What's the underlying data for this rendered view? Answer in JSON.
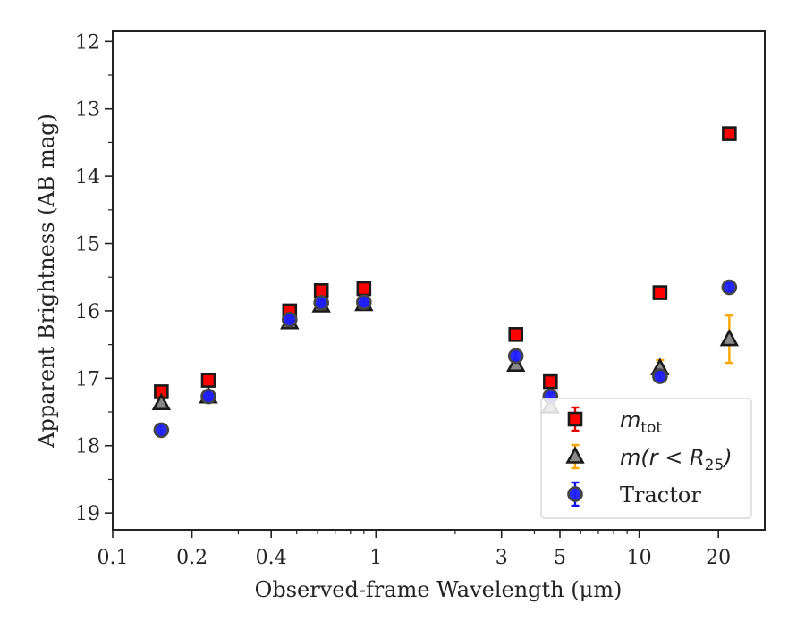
{
  "chart_data": {
    "type": "scatter",
    "xlabel": "Observed-frame Wavelength (μm)",
    "ylabel": "Apparent Brightness (AB mag)",
    "xscale": "log",
    "xlim": [
      0.1,
      30
    ],
    "ylim": [
      19.25,
      11.85
    ],
    "y_inverted": true,
    "x_ticks": [
      {
        "value": 0.1,
        "label": "0.1"
      },
      {
        "value": 0.2,
        "label": "0.2"
      },
      {
        "value": 0.4,
        "label": "0.4"
      },
      {
        "value": 1,
        "label": "1"
      },
      {
        "value": 3,
        "label": "3"
      },
      {
        "value": 5,
        "label": "5"
      },
      {
        "value": 10,
        "label": "10"
      },
      {
        "value": 20,
        "label": "20"
      }
    ],
    "y_ticks": [
      12,
      13,
      14,
      15,
      16,
      17,
      18,
      19
    ],
    "grid": false,
    "legend_position": "lower-right",
    "series": [
      {
        "name": "m_tot",
        "legend_base": "m",
        "legend_sub": "tot",
        "legend_sub_after": "",
        "marker": "square",
        "color": "#ff0000",
        "edge": "#1a1a1a",
        "errcolor": "#e00000",
        "points": [
          {
            "x": 0.153,
            "y": 17.2,
            "err": 0.04
          },
          {
            "x": 0.231,
            "y": 17.03,
            "err": 0.04
          },
          {
            "x": 0.47,
            "y": 16.0,
            "err": 0.03
          },
          {
            "x": 0.62,
            "y": 15.7,
            "err": 0.03
          },
          {
            "x": 0.9,
            "y": 15.67,
            "err": 0.03
          },
          {
            "x": 3.4,
            "y": 16.35,
            "err": 0.04
          },
          {
            "x": 4.6,
            "y": 17.05,
            "err": 0.05
          },
          {
            "x": 12.0,
            "y": 15.73,
            "err": 0.05
          },
          {
            "x": 22.0,
            "y": 13.37,
            "err": 0.05
          }
        ]
      },
      {
        "name": "m(r<R25)",
        "legend_base": "m(r < R",
        "legend_sub": "25",
        "legend_sub_after": ")",
        "marker": "triangle",
        "color": "#888888",
        "edge": "#1a1a1a",
        "errcolor": "#ffa500",
        "points": [
          {
            "x": 0.153,
            "y": 17.37,
            "err": 0.05
          },
          {
            "x": 0.231,
            "y": 17.27,
            "err": 0.04
          },
          {
            "x": 0.47,
            "y": 16.17,
            "err": 0.03
          },
          {
            "x": 0.62,
            "y": 15.92,
            "err": 0.03
          },
          {
            "x": 0.9,
            "y": 15.9,
            "err": 0.03
          },
          {
            "x": 3.4,
            "y": 16.8,
            "err": 0.05
          },
          {
            "x": 4.6,
            "y": 17.42,
            "err": 0.07
          },
          {
            "x": 12.0,
            "y": 16.85,
            "err": 0.12
          },
          {
            "x": 22.0,
            "y": 16.42,
            "err": 0.35
          }
        ]
      },
      {
        "name": "Tractor",
        "legend_base": "Tractor",
        "legend_sub": "",
        "legend_sub_after": "",
        "marker": "circle",
        "color": "#1f1fff",
        "edge": "#444444",
        "errcolor": "#1010ff",
        "points": [
          {
            "x": 0.153,
            "y": 17.77,
            "err": 0.08
          },
          {
            "x": 0.231,
            "y": 17.27,
            "err": 0.04
          },
          {
            "x": 0.47,
            "y": 16.13,
            "err": 0.03
          },
          {
            "x": 0.62,
            "y": 15.88,
            "err": 0.03
          },
          {
            "x": 0.9,
            "y": 15.87,
            "err": 0.03
          },
          {
            "x": 3.4,
            "y": 16.67,
            "err": 0.08
          },
          {
            "x": 4.6,
            "y": 17.27,
            "err": 0.05
          },
          {
            "x": 12.0,
            "y": 16.97,
            "err": 0.06
          },
          {
            "x": 22.0,
            "y": 15.65,
            "err": 0.06
          }
        ]
      }
    ]
  }
}
